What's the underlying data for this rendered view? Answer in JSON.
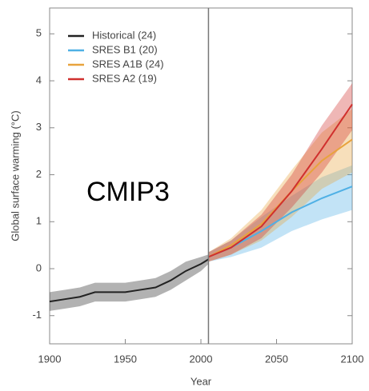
{
  "chart_data": {
    "type": "line",
    "x_label": "Year",
    "y_label": "Global surface warming (°C)",
    "annotation": "CMIP3",
    "xlim": [
      1900,
      2100
    ],
    "xticks": [
      1900,
      1950,
      2000,
      2050,
      2100
    ],
    "ylim": [
      -1.6,
      5.55
    ],
    "yticks": [
      -1,
      0,
      1,
      2,
      3,
      4,
      5
    ],
    "vline": 2005,
    "legend": "upper left",
    "series": [
      {
        "name": "Historical (24)",
        "color": "#222222",
        "x": [
          1900,
          1910,
          1920,
          1930,
          1940,
          1950,
          1960,
          1970,
          1980,
          1990,
          2000,
          2005
        ],
        "values": [
          -0.7,
          -0.65,
          -0.6,
          -0.5,
          -0.5,
          -0.5,
          -0.45,
          -0.4,
          -0.25,
          -0.05,
          0.1,
          0.2
        ],
        "lower": [
          -0.9,
          -0.85,
          -0.8,
          -0.7,
          -0.7,
          -0.7,
          -0.65,
          -0.6,
          -0.45,
          -0.25,
          -0.05,
          0.1
        ],
        "upper": [
          -0.5,
          -0.45,
          -0.4,
          -0.3,
          -0.3,
          -0.3,
          -0.25,
          -0.2,
          -0.05,
          0.15,
          0.25,
          0.3
        ]
      },
      {
        "name": "SRES B1 (20)",
        "color": "#4fb0e5",
        "x": [
          2005,
          2020,
          2040,
          2060,
          2080,
          2100
        ],
        "values": [
          0.25,
          0.45,
          0.8,
          1.2,
          1.5,
          1.75
        ],
        "lower": [
          0.15,
          0.25,
          0.45,
          0.8,
          1.05,
          1.25
        ],
        "upper": [
          0.35,
          0.6,
          1.1,
          1.55,
          1.95,
          2.2
        ]
      },
      {
        "name": "SRES A1B (24)",
        "color": "#e8a33d",
        "x": [
          2005,
          2020,
          2040,
          2060,
          2080,
          2100
        ],
        "values": [
          0.25,
          0.5,
          0.95,
          1.65,
          2.3,
          2.75
        ],
        "lower": [
          0.15,
          0.3,
          0.6,
          1.1,
          1.7,
          2.05
        ],
        "upper": [
          0.35,
          0.65,
          1.25,
          2.1,
          2.9,
          3.4
        ]
      },
      {
        "name": "SRES A2 (19)",
        "color": "#d0302e",
        "x": [
          2005,
          2020,
          2040,
          2060,
          2080,
          2100
        ],
        "values": [
          0.25,
          0.45,
          0.9,
          1.65,
          2.55,
          3.5
        ],
        "lower": [
          0.15,
          0.3,
          0.65,
          1.3,
          2.05,
          2.95
        ],
        "upper": [
          0.35,
          0.6,
          1.15,
          2.0,
          3.05,
          3.95
        ]
      }
    ]
  }
}
